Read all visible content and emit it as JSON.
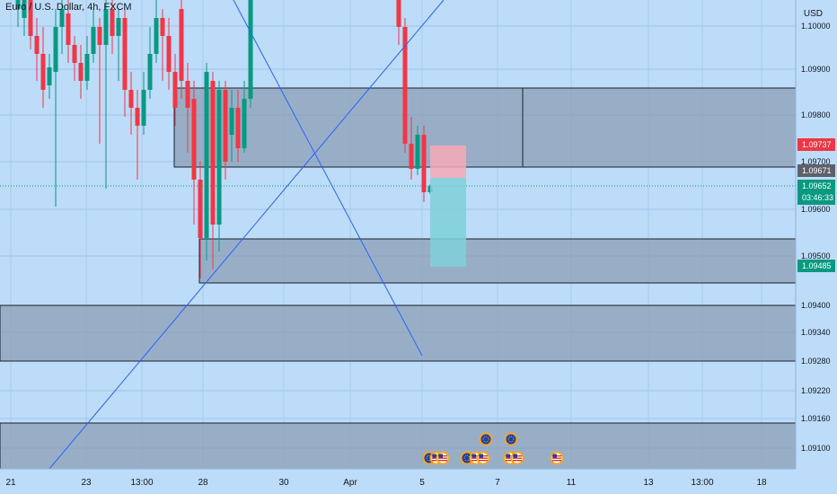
{
  "header": {
    "title": "Euro / U.S. Dollar, 4h, FXCM"
  },
  "price_axis": {
    "currency": "USD",
    "ticks": [
      "1.10000",
      "1.09900",
      "1.09800",
      "1.09700",
      "1.09600",
      "1.09500",
      "1.09400",
      "1.09340",
      "1.09280",
      "1.09220",
      "1.09160",
      "1.09100"
    ],
    "labels": [
      {
        "value": "1.09737",
        "color": "#f23645"
      },
      {
        "value": "1.09671",
        "color": "#5d606b"
      },
      {
        "value": "1.09652",
        "sub": "03:46:33",
        "color": "#089981"
      },
      {
        "value": "1.09485",
        "color": "#089981"
      }
    ]
  },
  "time_axis": {
    "ticks": [
      "21",
      "23",
      "13:00",
      "28",
      "30",
      "Apr",
      "5",
      "7",
      "11",
      "13",
      "13:00",
      "18"
    ]
  },
  "colors": {
    "background": "#bcdcf9",
    "up": "#089981",
    "down": "#f23645",
    "zone_fill": "#9aabbe",
    "trendline": "#2962ff",
    "stop_zone": "#f7a9b6",
    "target_zone": "#7fd0d8"
  },
  "event_icons": [
    "eu-flag-icon",
    "us-flag-icon",
    "us-flag-icon",
    "eu-flag-icon",
    "us-flag-icon",
    "us-flag-icon",
    "eu-flag-icon",
    "us-flag-icon",
    "us-flag-icon",
    "eu-flag-icon",
    "us-flag-icon"
  ]
}
